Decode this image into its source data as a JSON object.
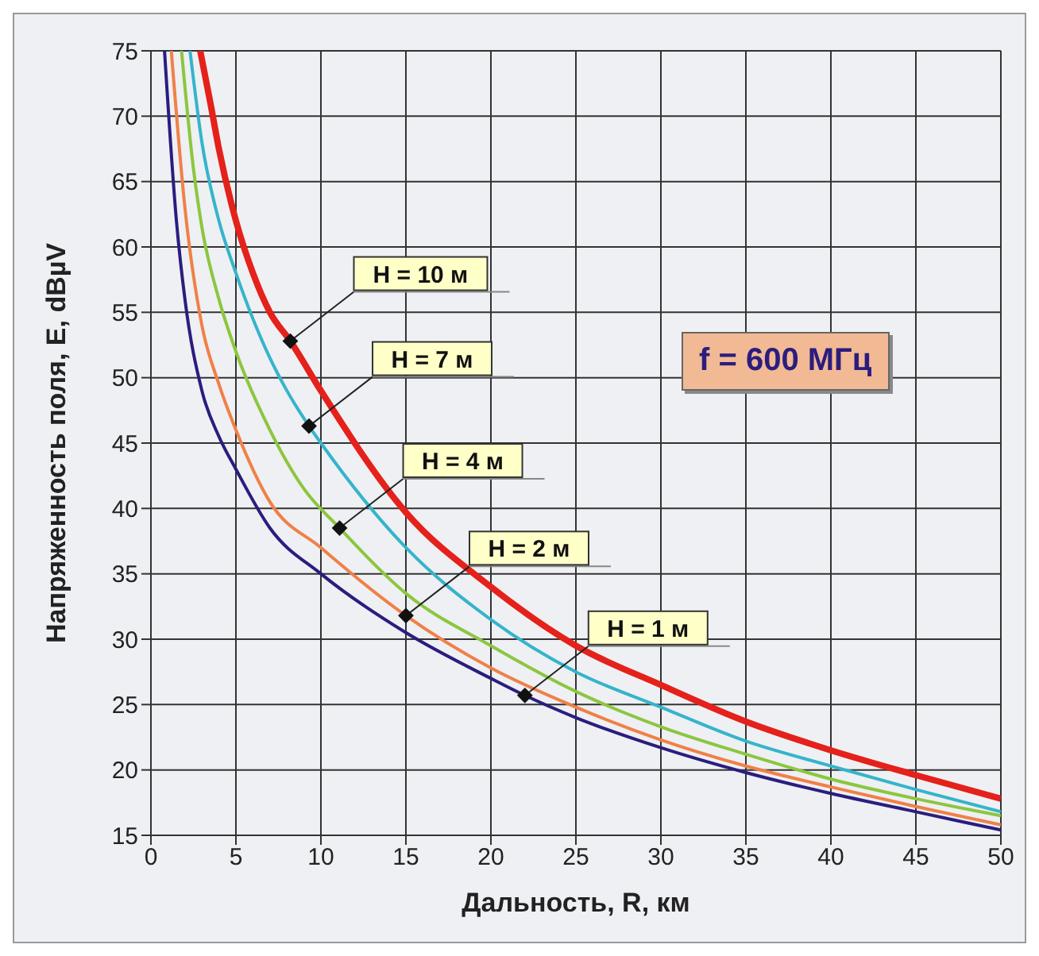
{
  "chart_data": {
    "type": "line",
    "xlabel": "Дальность, R, км",
    "ylabel": "Напряженность поля, E, dBµV",
    "xlim": [
      0,
      50
    ],
    "ylim": [
      15,
      75
    ],
    "xticks": [
      0,
      5,
      10,
      15,
      20,
      25,
      30,
      35,
      40,
      45,
      50
    ],
    "yticks": [
      15,
      20,
      25,
      30,
      35,
      40,
      45,
      50,
      55,
      60,
      65,
      70,
      75
    ],
    "grid": true,
    "series": [
      {
        "color": "#2b1d7e",
        "x": [
          0.8,
          1.5,
          2,
          3,
          4,
          5,
          7,
          10,
          15,
          20,
          22,
          25,
          30,
          35,
          40,
          45,
          50
        ],
        "values": [
          75,
          62,
          56,
          49,
          45.5,
          43,
          38.5,
          35,
          30.5,
          27,
          25.7,
          24,
          21.7,
          19.8,
          18.2,
          16.8,
          15.4
        ]
      },
      {
        "color": "#f08048",
        "x": [
          1.2,
          2,
          3,
          4,
          5,
          7,
          10,
          15,
          20,
          25,
          30,
          35,
          40,
          45,
          50
        ],
        "values": [
          75,
          63,
          54,
          49.5,
          46,
          40.5,
          37,
          31.8,
          27.8,
          24.8,
          22.3,
          20.3,
          18.7,
          17.2,
          15.8
        ]
      },
      {
        "color": "#8cc63f",
        "x": [
          1.8,
          2.5,
          3,
          4,
          5,
          7,
          9,
          11.1,
          15,
          20,
          25,
          30,
          35,
          40,
          45,
          50
        ],
        "values": [
          75,
          66,
          61.5,
          56,
          52,
          46,
          41.5,
          38.5,
          33.5,
          29.5,
          26,
          23.3,
          21.2,
          19.3,
          17.8,
          16.5
        ]
      },
      {
        "color": "#35b4cb",
        "x": [
          2.3,
          3,
          4,
          5,
          6,
          7,
          8,
          9.3,
          10,
          15,
          20,
          25,
          30,
          35,
          40,
          45,
          50
        ],
        "values": [
          75,
          68,
          62,
          58,
          54.5,
          51.5,
          49,
          46.3,
          45,
          37,
          31.5,
          27.5,
          24.8,
          22.2,
          20.3,
          18.5,
          16.8
        ]
      },
      {
        "color": "#e4211b",
        "x": [
          2.9,
          3.5,
          4,
          5,
          6,
          7,
          8.2,
          10,
          15,
          20,
          25,
          30,
          35,
          40,
          45,
          50
        ],
        "values": [
          75,
          71,
          67.5,
          62,
          58,
          55,
          52.8,
          49,
          39.7,
          34,
          29.5,
          26.5,
          23.7,
          21.5,
          19.6,
          17.8
        ]
      }
    ],
    "annotations": [
      {
        "text": "H = 10 м",
        "x": 8.2,
        "y": 52.8
      },
      {
        "text": "H = 7 м",
        "x": 9.3,
        "y": 46.3
      },
      {
        "text": "H = 4 м",
        "x": 11.1,
        "y": 38.5
      },
      {
        "text": "H = 2 м",
        "x": 15,
        "y": 31.8
      },
      {
        "text": "H = 1 м",
        "x": 22,
        "y": 25.7
      },
      "f = 600 МГц"
    ]
  }
}
